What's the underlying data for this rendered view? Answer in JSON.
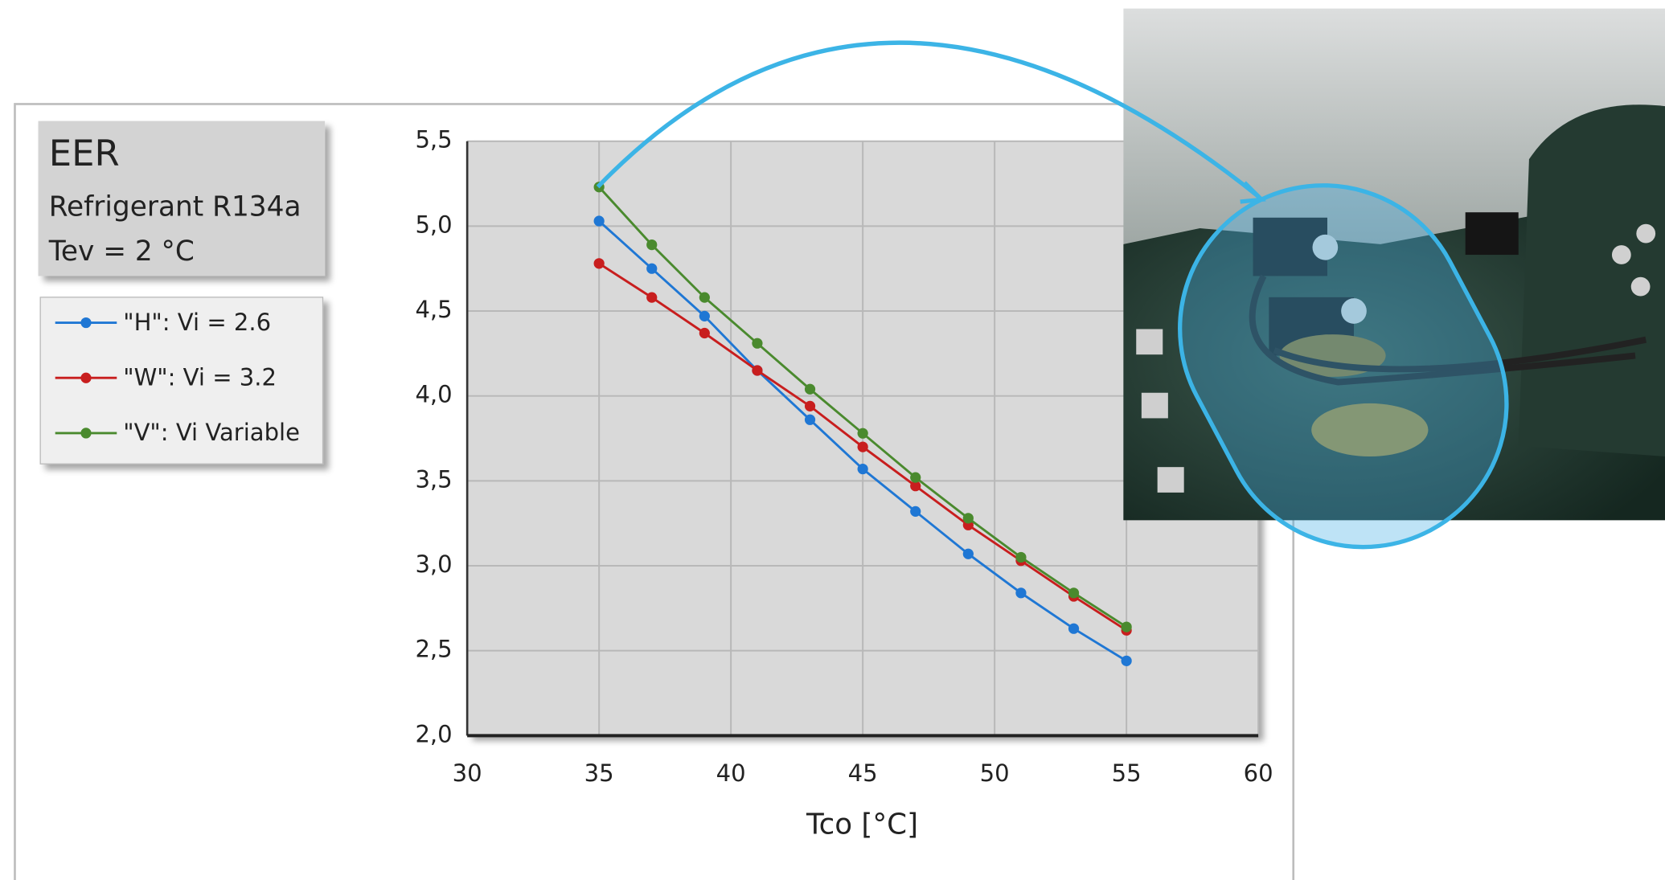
{
  "chart_data": {
    "type": "line",
    "title": "EER",
    "subtitle": "Refrigerant R134a",
    "annotation": "Tev = 2 °C",
    "xlabel": "Tco [°C]",
    "x": [
      35,
      37,
      39,
      41,
      43,
      45,
      47,
      49,
      51,
      53,
      55
    ],
    "series": [
      {
        "name": "\"H\": Vi = 2.6",
        "color": "#1f77d4",
        "values": [
          5.03,
          4.75,
          4.47,
          4.15,
          3.86,
          3.57,
          3.32,
          3.07,
          2.84,
          2.63,
          2.44
        ]
      },
      {
        "name": "\"W\": Vi = 3.2",
        "color": "#c81e1e",
        "values": [
          4.78,
          4.58,
          4.37,
          4.15,
          3.94,
          3.7,
          3.47,
          3.24,
          3.03,
          2.82,
          2.62
        ]
      },
      {
        "name": "\"V\": Vi Variable",
        "color": "#4a8a2e",
        "values": [
          5.23,
          4.89,
          4.58,
          4.31,
          4.04,
          3.78,
          3.52,
          3.28,
          3.05,
          2.84,
          2.64
        ]
      }
    ],
    "xlim": [
      30,
      60
    ],
    "xticks": [
      30,
      35,
      40,
      45,
      50,
      55,
      60
    ],
    "ylim": [
      2.0,
      5.5
    ],
    "yticks": [
      {
        "value": 2.0,
        "label": "2,0"
      },
      {
        "value": 2.5,
        "label": "2,5"
      },
      {
        "value": 3.0,
        "label": "3,0"
      },
      {
        "value": 3.5,
        "label": "3,5"
      },
      {
        "value": 4.0,
        "label": "4,0"
      },
      {
        "value": 4.5,
        "label": "4,5"
      },
      {
        "value": 5.0,
        "label": "5,0"
      },
      {
        "value": 5.5,
        "label": "5,5"
      }
    ],
    "grid": true
  }
}
